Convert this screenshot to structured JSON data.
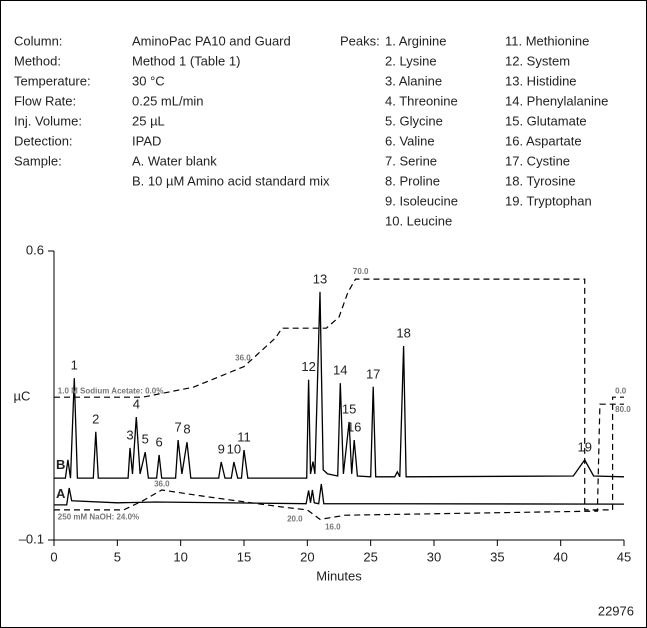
{
  "chart_data": {
    "type": "line",
    "method_table": [
      {
        "label": "Column:",
        "value": [
          "AminoPac PA10 and Guard"
        ]
      },
      {
        "label": "Method:",
        "value": [
          "Method 1 (Table 1)"
        ]
      },
      {
        "label": "Temperature:",
        "value": [
          "30 °C"
        ]
      },
      {
        "label": "Flow Rate:",
        "value": [
          "0.25 mL/min"
        ]
      },
      {
        "label": "Inj. Volume:",
        "value": [
          "25 µL"
        ]
      },
      {
        "label": "Detection:",
        "value": [
          "IPAD"
        ]
      },
      {
        "label": "Sample:",
        "value": [
          "A. Water blank",
          "B. 10 µM Amino acid standard mix"
        ]
      }
    ],
    "peaks_title": "Peaks:",
    "peak_list": [
      "1. Arginine",
      "2. Lysine",
      "3. Alanine",
      "4. Threonine",
      "5. Glycine",
      "6. Valine",
      "7. Serine",
      "8. Proline",
      "9. Isoleucine",
      "10. Leucine",
      "11. Methionine",
      "12. System",
      "13. Histidine",
      "14. Phenylalanine",
      "15. Glutamate",
      "16. Aspartate",
      "17. Cystine",
      "18. Tyrosine",
      "19. Tryptophan"
    ],
    "y_label": "µC",
    "x_label": "Minutes",
    "figure_id": "22976",
    "xlim": [
      0,
      45
    ],
    "xticks": [
      0,
      5,
      10,
      15,
      20,
      25,
      30,
      35,
      40,
      45
    ],
    "ylim": [
      -0.1,
      0.6
    ],
    "yticks": [
      {
        "value": -0.1,
        "label": "–0.1"
      },
      0.6
    ],
    "series": [
      {
        "name": "B",
        "color": "#000000",
        "dash": false,
        "label_at": [
          0.9,
          0.08
        ],
        "x": [
          0,
          0.9,
          1.1,
          1.3,
          1.6,
          1.85,
          3.1,
          3.3,
          3.5,
          5.85,
          6.0,
          6.2,
          6.5,
          6.8,
          7.2,
          7.45,
          8.1,
          8.3,
          8.5,
          9.6,
          9.8,
          10.1,
          10.5,
          10.8,
          13.0,
          13.2,
          13.5,
          14.0,
          14.2,
          14.5,
          14.8,
          15.0,
          15.3,
          19.95,
          20.1,
          20.25,
          20.45,
          20.6,
          21.0,
          21.25,
          21.6,
          22.4,
          22.6,
          22.85,
          23.3,
          23.5,
          23.7,
          23.95,
          25.0,
          25.2,
          25.4,
          26.9,
          27.1,
          27.3,
          27.6,
          27.8,
          41.0,
          41.9,
          42.6,
          45
        ],
        "values": [
          0.05,
          0.05,
          0.094,
          0.05,
          0.292,
          0.05,
          0.05,
          0.162,
          0.05,
          0.05,
          0.123,
          0.06,
          0.198,
          0.06,
          0.113,
          0.05,
          0.05,
          0.106,
          0.05,
          0.05,
          0.142,
          0.06,
          0.137,
          0.05,
          0.05,
          0.089,
          0.05,
          0.05,
          0.089,
          0.05,
          0.05,
          0.118,
          0.05,
          0.05,
          0.288,
          0.06,
          0.09,
          0.06,
          0.501,
          0.07,
          0.06,
          0.055,
          0.28,
          0.06,
          0.186,
          0.06,
          0.142,
          0.055,
          0.053,
          0.271,
          0.053,
          0.053,
          0.065,
          0.053,
          0.37,
          0.053,
          0.055,
          0.094,
          0.055,
          0.053
        ]
      },
      {
        "name": "A",
        "color": "#000000",
        "dash": false,
        "label_at": [
          0.9,
          0.01
        ],
        "x": [
          0,
          1.0,
          1.2,
          1.4,
          5,
          8,
          19.9,
          20.1,
          20.25,
          20.4,
          20.55,
          20.9,
          21.1,
          21.3,
          45
        ],
        "values": [
          -0.015,
          -0.015,
          0.026,
          -0.005,
          -0.01,
          -0.008,
          -0.012,
          0.02,
          -0.01,
          0.021,
          -0.01,
          -0.012,
          0.036,
          -0.012,
          -0.013
        ]
      },
      {
        "color": "#000000",
        "dash": true,
        "x": [
          0,
          7,
          11,
          15,
          17.5,
          18,
          21.5,
          22.5,
          23.2,
          23.8,
          41.9,
          41.9,
          44.1,
          44.1,
          45
        ],
        "values": [
          0.246,
          0.246,
          0.27,
          0.32,
          0.39,
          0.413,
          0.413,
          0.44,
          0.5,
          0.532,
          0.532,
          -0.027,
          -0.027,
          0.246,
          0.246
        ]
      },
      {
        "color": "#000000",
        "dash": true,
        "x": [
          0,
          5.5,
          7,
          8.5,
          12,
          18,
          20,
          21,
          23,
          42.9,
          43.1,
          45
        ],
        "values": [
          -0.027,
          -0.027,
          -0.005,
          0.021,
          0.005,
          -0.02,
          -0.027,
          -0.05,
          -0.04,
          -0.03,
          0.229,
          0.229
        ]
      }
    ],
    "peak_labels": [
      {
        "text": "1",
        "x": 1.6,
        "y": 0.292
      },
      {
        "text": "2",
        "x": 3.3,
        "y": 0.162
      },
      {
        "text": "3",
        "x": 6.0,
        "y": 0.123
      },
      {
        "text": "4",
        "x": 6.5,
        "y": 0.198
      },
      {
        "text": "5",
        "x": 7.2,
        "y": 0.113
      },
      {
        "text": "6",
        "x": 8.3,
        "y": 0.106
      },
      {
        "text": "7",
        "x": 9.8,
        "y": 0.142
      },
      {
        "text": "8",
        "x": 10.5,
        "y": 0.137
      },
      {
        "text": "9",
        "x": 13.2,
        "y": 0.089
      },
      {
        "text": "10",
        "x": 14.2,
        "y": 0.089
      },
      {
        "text": "11",
        "x": 15.0,
        "y": 0.118
      },
      {
        "text": "12",
        "x": 20.1,
        "y": 0.288
      },
      {
        "text": "13",
        "x": 21.0,
        "y": 0.501
      },
      {
        "text": "14",
        "x": 22.6,
        "y": 0.28
      },
      {
        "text": "15",
        "x": 23.3,
        "y": 0.186
      },
      {
        "text": "16",
        "x": 23.7,
        "y": 0.142
      },
      {
        "text": "17",
        "x": 25.2,
        "y": 0.271
      },
      {
        "text": "18",
        "x": 27.6,
        "y": 0.37
      },
      {
        "text": "19",
        "x": 41.9,
        "y": 0.094
      }
    ],
    "annotations": [
      {
        "text": "1.0 M Sodium Acetate: 0.0%",
        "x": 0.3,
        "y": 0.26
      },
      {
        "text": "36.0",
        "x": 14.3,
        "y": 0.34
      },
      {
        "text": "70.0",
        "x": 23.6,
        "y": 0.55
      },
      {
        "text": "0.0",
        "x": 44.3,
        "y": 0.26
      },
      {
        "text": "80.0",
        "x": 44.3,
        "y": 0.215
      },
      {
        "text": "36.0",
        "x": 7.9,
        "y": 0.035
      },
      {
        "text": "250 mM NaOH: 24.0%",
        "x": 0.3,
        "y": -0.045
      },
      {
        "text": "20.0",
        "x": 18.4,
        "y": -0.05
      },
      {
        "text": "16.0",
        "x": 21.4,
        "y": -0.07
      }
    ]
  }
}
